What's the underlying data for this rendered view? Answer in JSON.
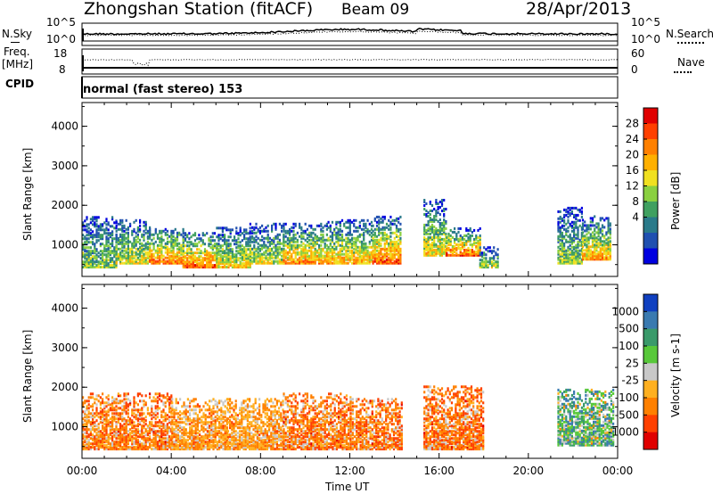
{
  "header": {
    "station_title": "Zhongshan Station (fitACF)",
    "beam": "Beam 09",
    "date": "28/Apr/2013"
  },
  "sky_panel": {
    "left_label": "N.Sky",
    "right_label": "N.Search",
    "left_ticks": [
      "10^5",
      "10^0"
    ],
    "right_ticks": [
      "10^5",
      "10^0"
    ]
  },
  "freq_panel": {
    "left_label_line1": "Freq.",
    "left_label_line2": "[MHz]",
    "right_label": "Nave",
    "left_ticks": [
      "18",
      "8"
    ],
    "right_ticks": [
      "60",
      "0"
    ]
  },
  "cpid": {
    "label": "CPID",
    "text": "normal (fast stereo) 153"
  },
  "chart_data": [
    {
      "type": "heatmap",
      "name": "power",
      "xlabel": "",
      "ylabel": "Slant Range [km]",
      "ylim": [
        200,
        4600
      ],
      "y_ticks": [
        "1000",
        "2000",
        "3000",
        "4000"
      ],
      "x_ticks": [
        "00:00",
        "04:00",
        "08:00",
        "12:00",
        "16:00",
        "20:00",
        "00:00"
      ],
      "colorbar": {
        "label": "Power [dB]",
        "labels": [
          "28",
          "24",
          "20",
          "16",
          "12",
          "8",
          "4"
        ],
        "colors": [
          "#e00000",
          "#ff4000",
          "#ff8000",
          "#ffb000",
          "#f0e020",
          "#8ad040",
          "#40a060",
          "#2a7a8a",
          "#2050b0",
          "#0000e0"
        ]
      },
      "echo_bands": [
        {
          "t": [
            0.0,
            1.5
          ],
          "r": [
            400,
            1700
          ],
          "level": 0.45
        },
        {
          "t": [
            1.5,
            3.0
          ],
          "r": [
            500,
            1600
          ],
          "level": 0.55
        },
        {
          "t": [
            3.0,
            4.5
          ],
          "r": [
            500,
            1400
          ],
          "level": 0.8
        },
        {
          "t": [
            4.5,
            6.0
          ],
          "r": [
            400,
            1300
          ],
          "level": 0.85
        },
        {
          "t": [
            6.0,
            7.5
          ],
          "r": [
            400,
            1400
          ],
          "level": 0.6
        },
        {
          "t": [
            7.5,
            9.0
          ],
          "r": [
            500,
            1500
          ],
          "level": 0.55
        },
        {
          "t": [
            9.0,
            11.0
          ],
          "r": [
            500,
            1500
          ],
          "level": 0.75
        },
        {
          "t": [
            11.0,
            13.0
          ],
          "r": [
            500,
            1600
          ],
          "level": 0.7
        },
        {
          "t": [
            13.0,
            14.3
          ],
          "r": [
            500,
            1700
          ],
          "level": 0.85
        },
        {
          "t": [
            15.3,
            16.3
          ],
          "r": [
            700,
            2100
          ],
          "level": 0.6
        },
        {
          "t": [
            16.3,
            17.8
          ],
          "r": [
            700,
            1400
          ],
          "level": 0.85
        },
        {
          "t": [
            17.8,
            18.6
          ],
          "r": [
            400,
            900
          ],
          "level": 0.5
        },
        {
          "t": [
            21.3,
            22.4
          ],
          "r": [
            500,
            1900
          ],
          "level": 0.45
        },
        {
          "t": [
            22.4,
            23.7
          ],
          "r": [
            600,
            1700
          ],
          "level": 0.7
        }
      ]
    },
    {
      "type": "heatmap",
      "name": "velocity",
      "xlabel": "Time UT",
      "ylabel": "Slant Range [km]",
      "ylim": [
        200,
        4600
      ],
      "y_ticks": [
        "1000",
        "2000",
        "3000",
        "4000"
      ],
      "x_ticks": [
        "00:00",
        "04:00",
        "08:00",
        "12:00",
        "16:00",
        "20:00",
        "00:00"
      ],
      "colorbar": {
        "label": "Velocity [m s-1]",
        "labels": [
          "1000",
          "500",
          "100",
          "25",
          "-25",
          "-100",
          "-500",
          "-1000"
        ],
        "colors": [
          "#1040c0",
          "#3a7ab0",
          "#3a9a6a",
          "#58c83a",
          "#c8c8c8",
          "#ffb020",
          "#ff8000",
          "#ff4000",
          "#e00000"
        ]
      },
      "echo_bands": [
        {
          "t": [
            0.0,
            1.5
          ],
          "r": [
            400,
            1800
          ],
          "level": 0.7
        },
        {
          "t": [
            1.5,
            4.0
          ],
          "r": [
            400,
            1800
          ],
          "level": 0.75
        },
        {
          "t": [
            4.0,
            6.5
          ],
          "r": [
            400,
            1700
          ],
          "level": 0.55
        },
        {
          "t": [
            6.5,
            9.0
          ],
          "r": [
            400,
            1700
          ],
          "level": 0.5
        },
        {
          "t": [
            9.0,
            12.0
          ],
          "r": [
            400,
            1800
          ],
          "level": 0.75
        },
        {
          "t": [
            12.0,
            14.3
          ],
          "r": [
            400,
            1700
          ],
          "level": 0.75
        },
        {
          "t": [
            15.3,
            18.0
          ],
          "r": [
            400,
            2000
          ],
          "level": 0.75
        },
        {
          "t": [
            21.3,
            23.8
          ],
          "r": [
            500,
            1900
          ],
          "level": 0.25
        }
      ]
    }
  ]
}
